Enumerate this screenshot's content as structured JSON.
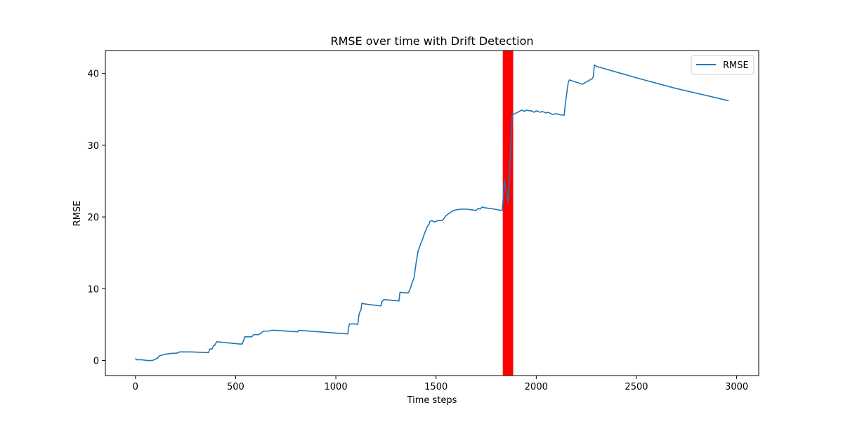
{
  "chart_data": {
    "type": "line",
    "title": "RMSE over time with Drift Detection",
    "xlabel": "Time steps",
    "ylabel": "RMSE",
    "xlim": [
      -150,
      3110
    ],
    "ylim": [
      -2.1,
      43.2
    ],
    "xticks": [
      0,
      500,
      1000,
      1500,
      2000,
      2500,
      3000
    ],
    "yticks": [
      0,
      10,
      20,
      30,
      40
    ],
    "grid": false,
    "legend": {
      "position": "top-right",
      "entries": [
        "RMSE"
      ]
    },
    "series": [
      {
        "name": "RMSE",
        "color": "#1f77b4",
        "x": [
          0,
          5,
          10,
          30,
          60,
          85,
          100,
          110,
          118,
          125,
          140,
          150,
          160,
          180,
          200,
          215,
          220,
          240,
          280,
          360,
          365,
          370,
          375,
          382,
          390,
          395,
          405,
          410,
          520,
          532,
          540,
          545,
          555,
          580,
          590,
          615,
          630,
          640,
          665,
          680,
          700,
          810,
          815,
          1060,
          1063,
          1068,
          1100,
          1105,
          1110,
          1115,
          1120,
          1125,
          1130,
          1140,
          1225,
          1230,
          1240,
          1315,
          1320,
          1360,
          1365,
          1375,
          1380,
          1390,
          1400,
          1410,
          1415,
          1425,
          1430,
          1435,
          1445,
          1450,
          1455,
          1465,
          1470,
          1480,
          1490,
          1500,
          1510,
          1530,
          1540,
          1550,
          1560,
          1570,
          1580,
          1600,
          1625,
          1650,
          1680,
          1700,
          1710,
          1720,
          1730,
          1740,
          1790,
          1830,
          1835,
          1840,
          1842,
          1845,
          1850,
          1855,
          1860,
          1880,
          1885,
          1900,
          1915,
          1920,
          1930,
          1940,
          1950,
          1965,
          1975,
          1990,
          2000,
          2020,
          2030,
          2050,
          2060,
          2080,
          2100,
          2110,
          2130,
          2140,
          2145,
          2150,
          2160,
          2165,
          2230,
          2280,
          2285,
          2290,
          2300,
          2500,
          2700,
          2900,
          2960
        ],
        "y": [
          0.3,
          0.1,
          0.1,
          0.1,
          0.0,
          0.0,
          0.2,
          0.3,
          0.6,
          0.7,
          0.8,
          0.9,
          0.9,
          1.0,
          1.0,
          1.1,
          1.2,
          1.2,
          1.2,
          1.1,
          1.1,
          1.6,
          1.6,
          1.6,
          2.1,
          2.1,
          2.6,
          2.6,
          2.3,
          2.3,
          2.8,
          3.3,
          3.3,
          3.3,
          3.6,
          3.6,
          3.9,
          4.1,
          4.1,
          4.2,
          4.2,
          4.0,
          4.2,
          3.7,
          4.5,
          5.1,
          5.1,
          5.0,
          5.1,
          6.3,
          6.8,
          7.0,
          8.0,
          7.9,
          7.6,
          8.2,
          8.5,
          8.3,
          9.5,
          9.4,
          9.6,
          10.3,
          10.8,
          11.5,
          13.5,
          15.2,
          15.6,
          16.4,
          16.7,
          17.1,
          17.9,
          18.2,
          18.6,
          19.0,
          19.4,
          19.5,
          19.3,
          19.4,
          19.5,
          19.5,
          19.8,
          20.2,
          20.4,
          20.6,
          20.8,
          21.0,
          21.1,
          21.1,
          21.0,
          20.9,
          21.2,
          21.1,
          21.4,
          21.3,
          21.1,
          20.9,
          22.5,
          24.8,
          25.1,
          24.0,
          23.8,
          23.0,
          22.0,
          34.1,
          34.3,
          34.5,
          34.7,
          34.8,
          34.9,
          34.7,
          34.9,
          34.8,
          34.8,
          34.6,
          34.8,
          34.6,
          34.7,
          34.5,
          34.6,
          34.3,
          34.4,
          34.3,
          34.2,
          34.2,
          35.8,
          36.8,
          38.8,
          39.1,
          38.5,
          39.3,
          39.6,
          41.2,
          41.0,
          39.4,
          37.9,
          36.6,
          36.2
        ]
      }
    ],
    "drift_band": {
      "x_start": 1833,
      "x_end": 1885,
      "color": "#ff0000"
    }
  }
}
